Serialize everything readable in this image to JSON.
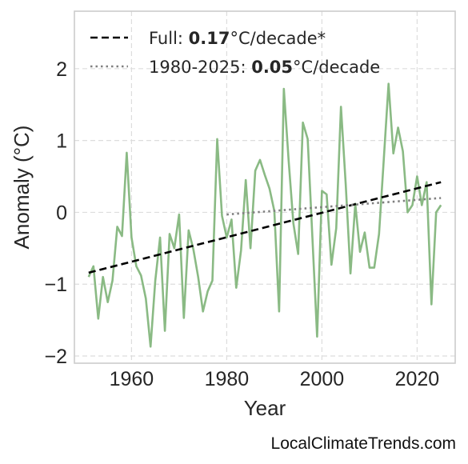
{
  "chart_data": {
    "type": "line",
    "xlabel": "Year",
    "ylabel": "Anomaly (°C)",
    "xlim": [
      1948,
      2028
    ],
    "ylim": [
      -2.1,
      2.8
    ],
    "xticks": [
      1960,
      1980,
      2000,
      2020
    ],
    "yticks": [
      -2,
      -1,
      0,
      1,
      2
    ],
    "xtick_labels": [
      "1960",
      "1980",
      "2000",
      "2020"
    ],
    "ytick_labels": [
      "−2",
      "−1",
      "0",
      "1",
      "2"
    ],
    "grid": true,
    "legend_placement": "top-left",
    "series": [
      {
        "name": "",
        "color": "#8aba84",
        "style": "solid",
        "x": [
          1951,
          1952,
          1953,
          1954,
          1955,
          1956,
          1957,
          1958,
          1959,
          1960,
          1961,
          1962,
          1963,
          1964,
          1965,
          1966,
          1967,
          1968,
          1969,
          1970,
          1971,
          1972,
          1973,
          1974,
          1975,
          1976,
          1977,
          1978,
          1979,
          1980,
          1981,
          1982,
          1983,
          1984,
          1985,
          1986,
          1987,
          1988,
          1989,
          1990,
          1991,
          1992,
          1993,
          1994,
          1995,
          1996,
          1997,
          1998,
          1999,
          2000,
          2001,
          2002,
          2003,
          2004,
          2005,
          2006,
          2007,
          2008,
          2009,
          2010,
          2011,
          2012,
          2013,
          2014,
          2015,
          2016,
          2017,
          2018,
          2019,
          2020,
          2021,
          2022,
          2023,
          2024,
          2025
        ],
        "y": [
          -0.9,
          -0.75,
          -1.48,
          -0.9,
          -1.25,
          -0.95,
          -0.2,
          -0.33,
          0.83,
          -0.35,
          -0.75,
          -0.88,
          -1.2,
          -1.87,
          -0.95,
          -0.35,
          -1.65,
          -0.3,
          -0.5,
          -0.03,
          -1.47,
          -0.25,
          -0.52,
          -0.9,
          -1.38,
          -1.1,
          -0.95,
          1.02,
          -0.05,
          -0.35,
          -0.1,
          -1.05,
          -0.53,
          0.45,
          -0.5,
          0.58,
          0.73,
          0.52,
          0.33,
          0.02,
          -1.38,
          1.72,
          0.72,
          -0.15,
          -0.58,
          1.25,
          1.02,
          -0.35,
          -1.73,
          0.3,
          0.25,
          -0.73,
          -0.22,
          1.47,
          0.38,
          -0.85,
          0.12,
          -0.55,
          -0.28,
          -0.77,
          -0.77,
          -0.3,
          0.75,
          1.79,
          0.82,
          1.18,
          0.85,
          0.0,
          0.1,
          0.5,
          0.1,
          0.42,
          -1.28,
          0.0,
          0.1
        ]
      },
      {
        "name": "Full trend",
        "color": "#000000",
        "style": "dashed",
        "x": [
          1951,
          2025
        ],
        "y": [
          -0.84,
          0.42
        ]
      },
      {
        "name": "1980-2025 trend",
        "color": "#808080",
        "style": "dotted",
        "x": [
          1980,
          2025
        ],
        "y": [
          -0.03,
          0.2
        ]
      }
    ],
    "legend": [
      {
        "prefix": "Full: ",
        "value": "0.17",
        "suffix": "°C/decade*",
        "color": "#000000",
        "style": "dashed"
      },
      {
        "prefix": "1980-2025: ",
        "value": "0.05",
        "suffix": "°C/decade",
        "color": "#808080",
        "style": "dotted"
      }
    ]
  },
  "watermark": "LocalClimateTrends.com"
}
